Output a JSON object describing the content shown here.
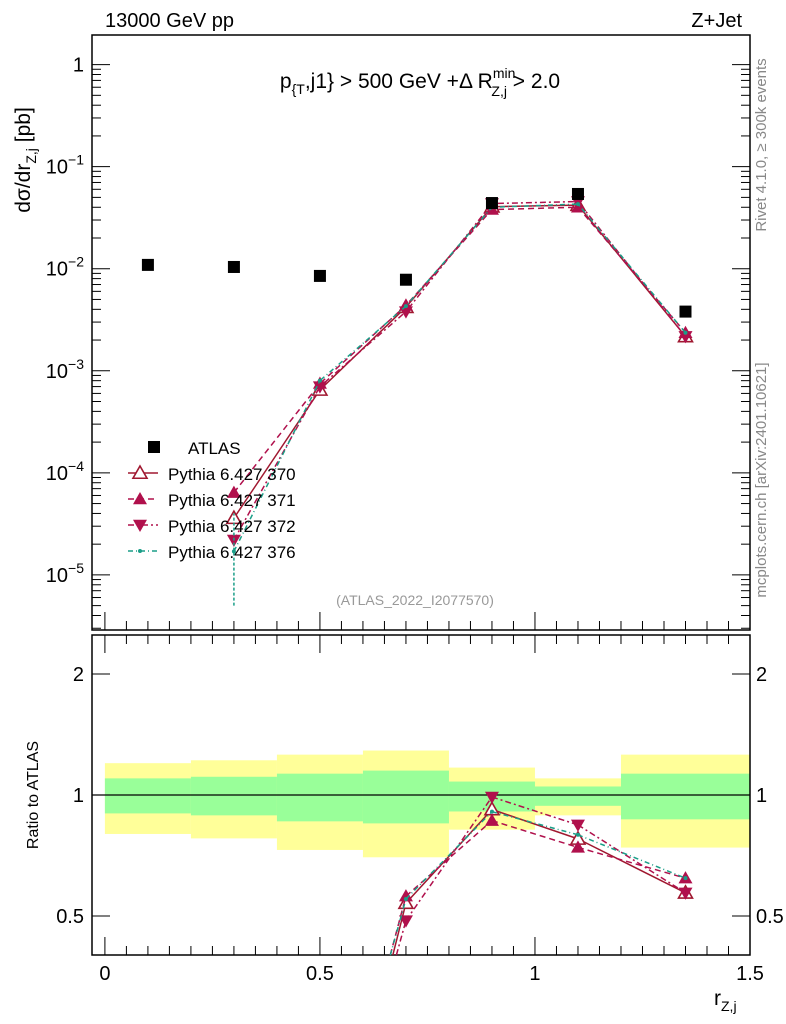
{
  "chart_data": {
    "type": "line",
    "header_left": "13000 GeV pp",
    "header_right": "Z+Jet",
    "title": {
      "p": "p",
      "sub1": "{T",
      "mid": ",j1} > 500 GeV +Δ R",
      "sup": "min",
      "sub2": "Z,j",
      "end": " > 2.0"
    },
    "ylabel": {
      "main": "dσ/dr",
      "sub": "Z,j",
      "unit": " [pb]"
    },
    "ratio_ylabel": "Ratio to ATLAS",
    "xlabel": {
      "main": "r",
      "sub": "Z,j"
    },
    "side_text_1": "Rivet 4.1.0, ≥ 300k events",
    "side_text_2": "mcplots.cern.ch [arXiv:2401.10621]",
    "watermark": "(ATLAS_2022_I2077570)",
    "xlim": [
      -0.03,
      1.5
    ],
    "ylim_log10": [
      -5.54,
      0.29
    ],
    "ratio_ylim": [
      0.4,
      2.5
    ],
    "x_ticks": [
      {
        "v": 0,
        "label": "0"
      },
      {
        "v": 0.5,
        "label": "0.5"
      },
      {
        "v": 1,
        "label": "1"
      },
      {
        "v": 1.5,
        "label": "1.5"
      }
    ],
    "y_ticks": [
      {
        "exp": 0,
        "label": "1"
      },
      {
        "exp": -1,
        "base": "10",
        "sup": "−1"
      },
      {
        "exp": -2,
        "base": "10",
        "sup": "−2"
      },
      {
        "exp": -3,
        "base": "10",
        "sup": "−3"
      },
      {
        "exp": -4,
        "base": "10",
        "sup": "−4"
      },
      {
        "exp": -5,
        "base": "10",
        "sup": "−5"
      }
    ],
    "ratio_ticks": [
      {
        "v": 0.5,
        "label": "0.5"
      },
      {
        "v": 1,
        "label": "1"
      },
      {
        "v": 2,
        "label": "2"
      }
    ],
    "bin_edges": [
      0,
      0.2,
      0.4,
      0.6,
      0.8,
      1.0,
      1.2,
      1.5
    ],
    "x": [
      0.1,
      0.3,
      0.5,
      0.7,
      0.9,
      1.1,
      1.35
    ],
    "data": {
      "name": "ATLAS",
      "values": [
        0.0109,
        0.0104,
        0.0085,
        0.0078,
        0.044,
        0.054,
        0.0038
      ],
      "color": "#000000"
    },
    "bands": {
      "inner": {
        "lo": [
          0.9,
          0.89,
          0.86,
          0.85,
          0.91,
          0.94,
          0.87
        ],
        "hi": [
          1.1,
          1.11,
          1.13,
          1.15,
          1.08,
          1.05,
          1.13
        ],
        "color": "#99ff99"
      },
      "outer": {
        "lo": [
          0.8,
          0.78,
          0.73,
          0.7,
          0.82,
          0.89,
          0.74
        ],
        "hi": [
          1.2,
          1.22,
          1.26,
          1.29,
          1.17,
          1.1,
          1.26
        ],
        "color": "#ffff99"
      }
    },
    "series": [
      {
        "name": "Pythia 6.427 370",
        "color": "#a01830",
        "dash": "",
        "marker": "open-triangle-up",
        "values": [
          null,
          3.6e-05,
          0.00065,
          0.0042,
          0.0405,
          0.042,
          0.00217
        ]
      },
      {
        "name": "Pythia 6.427 371",
        "color": "#b0104c",
        "dash": "6,4",
        "marker": "triangle-up",
        "values": [
          null,
          6.4e-05,
          0.00075,
          0.00437,
          0.038,
          0.04,
          0.00236
        ]
      },
      {
        "name": "Pythia 6.427 372",
        "color": "#b0104c",
        "dash": "6,3,2,3",
        "marker": "triangle-down",
        "values": [
          null,
          2.2e-05,
          0.0007,
          0.0038,
          0.0435,
          0.0455,
          0.00217
        ]
      },
      {
        "name": "Pythia 6.427 376",
        "color": "#1a9e88",
        "dash": "5,3,1,3",
        "marker": "dot",
        "values": [
          null,
          1.7e-05,
          0.0008,
          0.0043,
          0.04,
          0.043,
          0.00236
        ]
      }
    ],
    "legend_position": "lower-left"
  }
}
